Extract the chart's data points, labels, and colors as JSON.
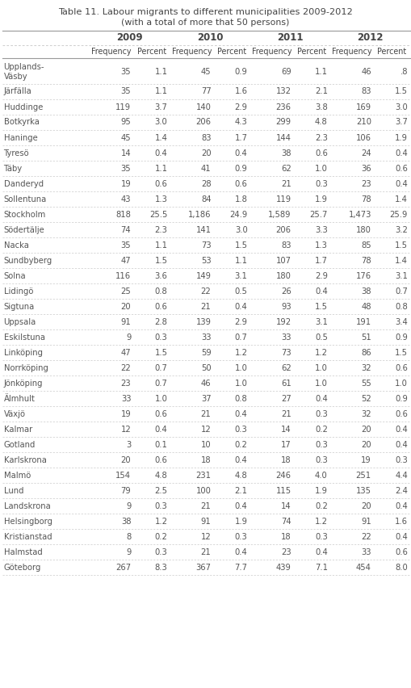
{
  "title_line1": "Table 11. Labour migrants to different municipalities 2009-2012",
  "title_line2": "(with a total of more that 50 persons)",
  "year_headers": [
    "2009",
    "2010",
    "2011",
    "2012"
  ],
  "sub_headers": [
    "Frequency",
    "Percent",
    "Frequency",
    "Percent",
    "Frequency",
    "Percent",
    "Frequency",
    "Percent"
  ],
  "rows": [
    [
      "Upplands-\nVäsby",
      "35",
      "1.1",
      "45",
      "0.9",
      "69",
      "1.1",
      "46",
      ".8"
    ],
    [
      "Järfälla",
      "35",
      "1.1",
      "77",
      "1.6",
      "132",
      "2.1",
      "83",
      "1.5"
    ],
    [
      "Huddinge",
      "119",
      "3.7",
      "140",
      "2.9",
      "236",
      "3.8",
      "169",
      "3.0"
    ],
    [
      "Botkyrka",
      "95",
      "3.0",
      "206",
      "4.3",
      "299",
      "4.8",
      "210",
      "3.7"
    ],
    [
      "Haninge",
      "45",
      "1.4",
      "83",
      "1.7",
      "144",
      "2.3",
      "106",
      "1.9"
    ],
    [
      "Tyresö",
      "14",
      "0.4",
      "20",
      "0.4",
      "38",
      "0.6",
      "24",
      "0.4"
    ],
    [
      "Täby",
      "35",
      "1.1",
      "41",
      "0.9",
      "62",
      "1.0",
      "36",
      "0.6"
    ],
    [
      "Danderyd",
      "19",
      "0.6",
      "28",
      "0.6",
      "21",
      "0.3",
      "23",
      "0.4"
    ],
    [
      "Sollentuna",
      "43",
      "1.3",
      "84",
      "1.8",
      "119",
      "1.9",
      "78",
      "1.4"
    ],
    [
      "Stockholm",
      "818",
      "25.5",
      "1,186",
      "24.9",
      "1,589",
      "25.7",
      "1,473",
      "25.9"
    ],
    [
      "Södertälje",
      "74",
      "2.3",
      "141",
      "3.0",
      "206",
      "3.3",
      "180",
      "3.2"
    ],
    [
      "Nacka",
      "35",
      "1.1",
      "73",
      "1.5",
      "83",
      "1.3",
      "85",
      "1.5"
    ],
    [
      "Sundbyberg",
      "47",
      "1.5",
      "53",
      "1.1",
      "107",
      "1.7",
      "78",
      "1.4"
    ],
    [
      "Solna",
      "116",
      "3.6",
      "149",
      "3.1",
      "180",
      "2.9",
      "176",
      "3.1"
    ],
    [
      "Lidingö",
      "25",
      "0.8",
      "22",
      "0.5",
      "26",
      "0.4",
      "38",
      "0.7"
    ],
    [
      "Sigtuna",
      "20",
      "0.6",
      "21",
      "0.4",
      "93",
      "1.5",
      "48",
      "0.8"
    ],
    [
      "Uppsala",
      "91",
      "2.8",
      "139",
      "2.9",
      "192",
      "3.1",
      "191",
      "3.4"
    ],
    [
      "Eskilstuna",
      "9",
      "0.3",
      "33",
      "0.7",
      "33",
      "0.5",
      "51",
      "0.9"
    ],
    [
      "Linköping",
      "47",
      "1.5",
      "59",
      "1.2",
      "73",
      "1.2",
      "86",
      "1.5"
    ],
    [
      "Norrköping",
      "22",
      "0.7",
      "50",
      "1.0",
      "62",
      "1.0",
      "32",
      "0.6"
    ],
    [
      "Jönköping",
      "23",
      "0.7",
      "46",
      "1.0",
      "61",
      "1.0",
      "55",
      "1.0"
    ],
    [
      "Älmhult",
      "33",
      "1.0",
      "37",
      "0.8",
      "27",
      "0.4",
      "52",
      "0.9"
    ],
    [
      "Växjö",
      "19",
      "0.6",
      "21",
      "0.4",
      "21",
      "0.3",
      "32",
      "0.6"
    ],
    [
      "Kalmar",
      "12",
      "0.4",
      "12",
      "0.3",
      "14",
      "0.2",
      "20",
      "0.4"
    ],
    [
      "Gotland",
      "3",
      "0.1",
      "10",
      "0.2",
      "17",
      "0.3",
      "20",
      "0.4"
    ],
    [
      "Karlskrona",
      "20",
      "0.6",
      "18",
      "0.4",
      "18",
      "0.3",
      "19",
      "0.3"
    ],
    [
      "Malmö",
      "154",
      "4.8",
      "231",
      "4.8",
      "246",
      "4.0",
      "251",
      "4.4"
    ],
    [
      "Lund",
      "79",
      "2.5",
      "100",
      "2.1",
      "115",
      "1.9",
      "135",
      "2.4"
    ],
    [
      "Landskrona",
      "9",
      "0.3",
      "21",
      "0.4",
      "14",
      "0.2",
      "20",
      "0.4"
    ],
    [
      "Helsingborg",
      "38",
      "1.2",
      "91",
      "1.9",
      "74",
      "1.2",
      "91",
      "1.6"
    ],
    [
      "Kristianstad",
      "8",
      "0.2",
      "12",
      "0.3",
      "18",
      "0.3",
      "22",
      "0.4"
    ],
    [
      "Halmstad",
      "9",
      "0.3",
      "21",
      "0.4",
      "23",
      "0.4",
      "33",
      "0.6"
    ],
    [
      "Göteborg",
      "267",
      "8.3",
      "367",
      "7.7",
      "439",
      "7.1",
      "454",
      "8.0"
    ]
  ],
  "bg_color": "#ffffff",
  "row_line_color": "#bbbbbb",
  "text_color": "#555555",
  "header_text_color": "#444444",
  "title_color": "#444444",
  "font_size": 7.2,
  "header_font_size": 7.8,
  "title_font_size": 8.2,
  "year_font_size": 8.5
}
